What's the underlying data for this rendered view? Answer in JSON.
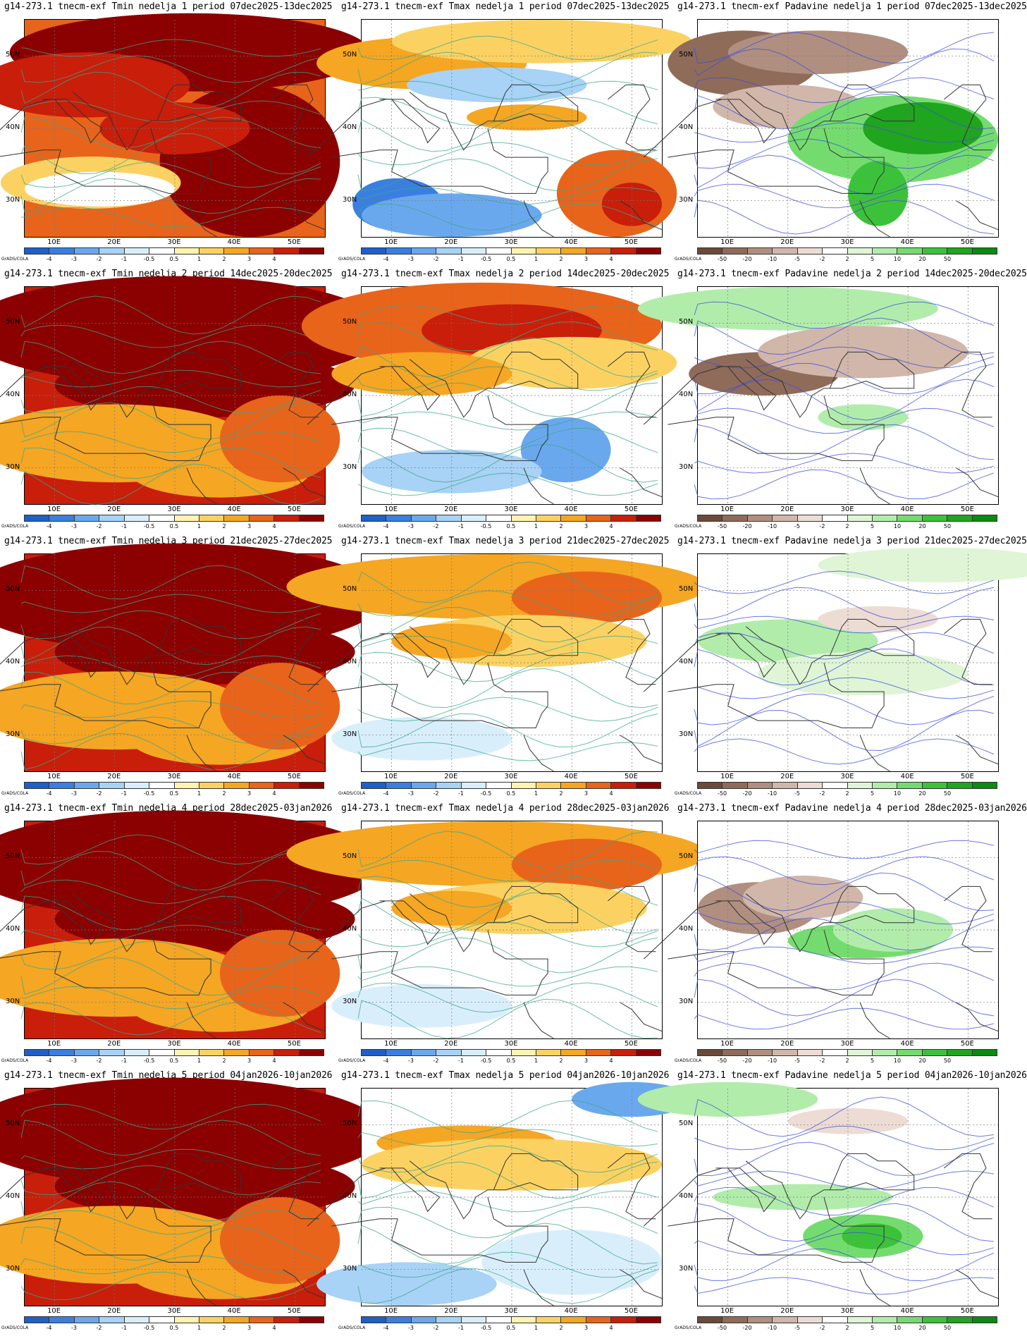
{
  "panels": [
    {
      "title": "g14-273.1 tnecm-exf Tmin nedelja 1 period 07dec2025-13dec2025",
      "var": "tmin",
      "theme": "warm1"
    },
    {
      "title": "g14-273.1 tnecm-exf Tmax nedelja 1 period 07dec2025-13dec2025",
      "var": "tmax",
      "theme": "mixed1"
    },
    {
      "title": "g14-273.1 tnecm-exf Padavine nedelja 1 period 07dec2025-13dec2025",
      "var": "pad",
      "theme": "pad1"
    },
    {
      "title": "g14-273.1 tnecm-exf Tmin nedelja 2 period 14dec2025-20dec2025",
      "var": "tmin",
      "theme": "hot"
    },
    {
      "title": "g14-273.1 tnecm-exf Tmax nedelja 2 period 14dec2025-20dec2025",
      "var": "tmax",
      "theme": "mixed2"
    },
    {
      "title": "g14-273.1 tnecm-exf Padavine nedelja 2 period 14dec2025-20dec2025",
      "var": "pad",
      "theme": "pad2"
    },
    {
      "title": "g14-273.1 tnecm-exf Tmin nedelja 3 period 21dec2025-27dec2025",
      "var": "tmin",
      "theme": "hot"
    },
    {
      "title": "g14-273.1 tnecm-exf Tmax nedelja 3 period 21dec2025-27dec2025",
      "var": "tmax",
      "theme": "mild"
    },
    {
      "title": "g14-273.1 tnecm-exf Padavine nedelja 3 period 21dec2025-27dec2025",
      "var": "pad",
      "theme": "pad3"
    },
    {
      "title": "g14-273.1 tnecm-exf Tmin nedelja 4 period 28dec2025-03jan2026",
      "var": "tmin",
      "theme": "hot"
    },
    {
      "title": "g14-273.1 tnecm-exf Tmax nedelja 4 period 28dec2025-03jan2026",
      "var": "tmax",
      "theme": "mild"
    },
    {
      "title": "g14-273.1 tnecm-exf Padavine nedelja 4 period 28dec2025-03jan2026",
      "var": "pad",
      "theme": "pad4"
    },
    {
      "title": "g14-273.1 tnecm-exf Tmin nedelja 5 period 04jan2026-10jan2026",
      "var": "tmin",
      "theme": "hot"
    },
    {
      "title": "g14-273.1 tnecm-exf Tmax nedelja 5 period 04jan2026-10jan2026",
      "var": "tmax",
      "theme": "cool"
    },
    {
      "title": "g14-273.1 tnecm-exf Padavine nedelja 5 period 04jan2026-10jan2026",
      "var": "pad",
      "theme": "pad5"
    }
  ],
  "lat_labels": [
    "50N",
    "40N",
    "30N"
  ],
  "lon_labels": [
    "10E",
    "20E",
    "30E",
    "40E",
    "50E"
  ],
  "credit": "GrADS/COLA",
  "temp_colorbar": {
    "labels": [
      "-4",
      "-3",
      "-2",
      "-1",
      "-0.5",
      "0.5",
      "1",
      "2",
      "3",
      "4"
    ],
    "colors": [
      "#1f5fc8",
      "#3a7fe0",
      "#6aa8ee",
      "#a8d2f6",
      "#d9eefb",
      "#ffffff",
      "#fff3b0",
      "#fbd262",
      "#f5a623",
      "#e8641b",
      "#c81e0a",
      "#8b0000"
    ]
  },
  "pad_colorbar": {
    "labels": [
      "-50",
      "-20",
      "-10",
      "-5",
      "-2",
      "2",
      "5",
      "10",
      "20",
      "50"
    ],
    "colors": [
      "#6b4a3a",
      "#8f6b5a",
      "#b08f80",
      "#d1b6aa",
      "#ecdcd4",
      "#ffffff",
      "#dff5d6",
      "#b2ecab",
      "#74dc6e",
      "#3cc23a",
      "#1fa51e",
      "#0a8a10"
    ]
  }
}
